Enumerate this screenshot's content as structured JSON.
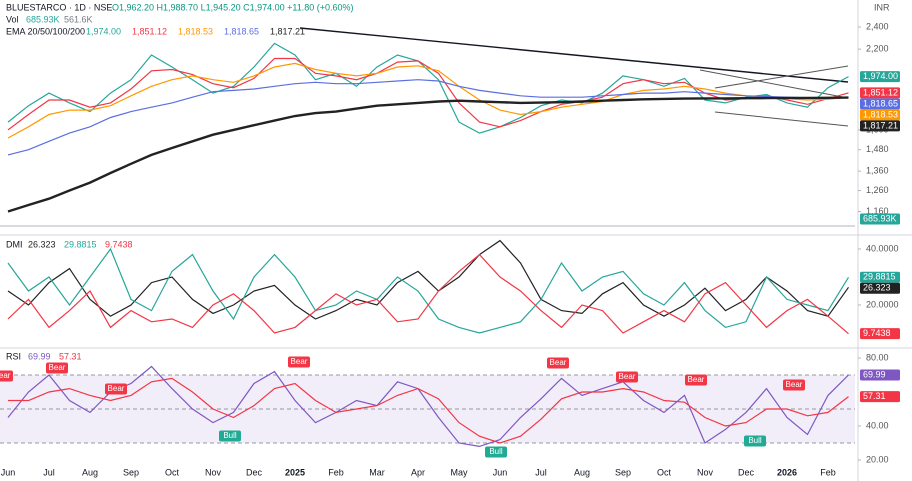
{
  "chart_data": [
    {
      "type": "line",
      "title": "BLUESTARCO · 1D · NSE",
      "ohlc_label": "O1,962.20 H1,988.70 L1,945.20 C1,974.00 +11.80 (+0.60%)",
      "volume_label": "Vol",
      "volume_value_label": "685.93K",
      "volume_ma_label": "561.6K",
      "ema_label": "EMA 20/50/100/200",
      "currency": "INR",
      "log_scale": true,
      "ylim": [
        1070,
        2670
      ],
      "yticks": [
        {
          "value": 2400,
          "label": "2,400"
        },
        {
          "value": 2200,
          "label": "2,200"
        },
        {
          "value": 1600,
          "label": "1,600"
        },
        {
          "value": 1480,
          "label": "1,480"
        },
        {
          "value": 1360,
          "label": "1,360"
        },
        {
          "value": 1260,
          "label": "1,260"
        },
        {
          "value": 1160,
          "label": "1,160"
        }
      ],
      "series": [
        {
          "color": "#26a69a",
          "value_label": "1,974.00",
          "values": [
            1650,
            1760,
            1850,
            1780,
            1720,
            1850,
            1950,
            2150,
            2050,
            1950,
            1850,
            1900,
            2050,
            2250,
            2150,
            1950,
            2000,
            1900,
            2050,
            2150,
            2100,
            1950,
            1650,
            1580,
            1620,
            1680,
            1760,
            1800,
            1780,
            1850,
            1980,
            1950,
            1900,
            1960,
            1800,
            1780,
            1820,
            1840,
            1780,
            1750,
            1890,
            1974
          ]
        },
        {
          "color": "#f23645",
          "value_label": "1,851.12",
          "values": [
            1600,
            1700,
            1800,
            1800,
            1750,
            1780,
            1880,
            2020,
            2030,
            1990,
            1920,
            1890,
            1960,
            2120,
            2120,
            2000,
            1980,
            1950,
            2000,
            2090,
            2100,
            2000,
            1780,
            1650,
            1620,
            1660,
            1720,
            1770,
            1790,
            1820,
            1920,
            1950,
            1920,
            1930,
            1850,
            1800,
            1810,
            1830,
            1800,
            1770,
            1810,
            1851.12
          ]
        },
        {
          "color": "#ff9800",
          "value_label": "1,818.53",
          "values": [
            1550,
            1620,
            1700,
            1730,
            1730,
            1760,
            1830,
            1900,
            1950,
            1980,
            1950,
            1930,
            1980,
            2050,
            2080,
            2030,
            2000,
            1980,
            2000,
            2050,
            2060,
            2020,
            1900,
            1800,
            1730,
            1700,
            1720,
            1750,
            1770,
            1790,
            1840,
            1870,
            1880,
            1900,
            1880,
            1850,
            1830,
            1820,
            1810,
            1800,
            1805,
            1818.53
          ]
        },
        {
          "color": "#5b6ee1",
          "value_label": "1,818.65",
          "values": [
            1450,
            1480,
            1530,
            1580,
            1620,
            1680,
            1720,
            1750,
            1780,
            1820,
            1860,
            1870,
            1880,
            1900,
            1920,
            1930,
            1920,
            1920,
            1930,
            1940,
            1950,
            1940,
            1900,
            1870,
            1850,
            1830,
            1820,
            1820,
            1820,
            1830,
            1840,
            1850,
            1850,
            1860,
            1850,
            1840,
            1830,
            1825,
            1820,
            1815,
            1815,
            1818.65
          ]
        },
        {
          "color": "#222222",
          "value_label": "1,817.21",
          "values": [
            1160,
            1190,
            1220,
            1260,
            1300,
            1350,
            1400,
            1450,
            1490,
            1530,
            1570,
            1600,
            1630,
            1660,
            1690,
            1710,
            1720,
            1740,
            1760,
            1770,
            1780,
            1790,
            1795,
            1790,
            1785,
            1780,
            1782,
            1785,
            1790,
            1795,
            1800,
            1805,
            1808,
            1810,
            1812,
            1812,
            1813,
            1814,
            1815,
            1815,
            1816,
            1817.21
          ]
        }
      ]
    },
    {
      "type": "line",
      "title": "DMI",
      "ylim": [
        5.7,
        43.2
      ],
      "yticks": [
        {
          "value": 40,
          "label": "40.0000"
        },
        {
          "value": 20,
          "label": "20.0000"
        }
      ],
      "series": [
        {
          "color": "#222222",
          "values": [
            25,
            20,
            28,
            33,
            22,
            16,
            20,
            28,
            30,
            22,
            17,
            20,
            25,
            27,
            20,
            15,
            18,
            22,
            20,
            28,
            32,
            25,
            30,
            38,
            43,
            35,
            22,
            18,
            17,
            24,
            28,
            20,
            16,
            20,
            26,
            18,
            22,
            30,
            25,
            18,
            16,
            26.323
          ]
        },
        {
          "color": "#26a69a",
          "values": [
            35,
            25,
            30,
            20,
            30,
            40,
            22,
            18,
            32,
            38,
            25,
            15,
            30,
            38,
            30,
            18,
            20,
            25,
            22,
            30,
            25,
            15,
            12,
            10,
            12,
            14,
            22,
            35,
            25,
            30,
            32,
            24,
            20,
            28,
            18,
            12,
            14,
            30,
            22,
            20,
            18,
            29.8815
          ]
        },
        {
          "color": "#f23645",
          "values": [
            15,
            22,
            12,
            18,
            25,
            12,
            18,
            14,
            15,
            12,
            20,
            24,
            18,
            10,
            12,
            18,
            24,
            20,
            22,
            14,
            15,
            25,
            32,
            38,
            30,
            25,
            18,
            12,
            20,
            18,
            10,
            14,
            18,
            14,
            24,
            28,
            20,
            12,
            18,
            22,
            16,
            9.7438
          ]
        }
      ]
    },
    {
      "type": "line",
      "title": "RSI",
      "ylim": [
        16.5,
        84.7
      ],
      "yticks": [
        {
          "value": 80,
          "label": "80.00"
        },
        {
          "value": 40,
          "label": "40.00"
        },
        {
          "value": 20,
          "label": "20.00"
        }
      ],
      "overbought": 70,
      "midline": 50,
      "oversold": 30,
      "categories": [
        "Jun",
        null,
        "Jul",
        null,
        "Aug",
        null,
        "Sep",
        null,
        "Oct",
        null,
        "Nov",
        null,
        "Dec",
        null,
        "2025",
        null,
        "Feb",
        null,
        "Mar",
        null,
        "Apr",
        null,
        "May",
        null,
        "Jun",
        null,
        "Jul",
        null,
        "Aug",
        null,
        "Sep",
        null,
        "Oct",
        null,
        "Nov",
        null,
        "Dec",
        null,
        "2026",
        null,
        "Feb",
        null
      ],
      "series": [
        {
          "color": "#7e57c2",
          "values": [
            45,
            60,
            70,
            55,
            48,
            60,
            65,
            75,
            62,
            50,
            42,
            48,
            65,
            72,
            55,
            42,
            48,
            55,
            52,
            66,
            62,
            45,
            30,
            28,
            32,
            45,
            56,
            68,
            58,
            62,
            66,
            55,
            48,
            58,
            30,
            38,
            48,
            62,
            45,
            35,
            58,
            69.99
          ]
        },
        {
          "color": "#f23645",
          "values": [
            55,
            55,
            60,
            62,
            58,
            55,
            58,
            66,
            68,
            60,
            50,
            45,
            52,
            62,
            65,
            55,
            48,
            50,
            52,
            58,
            62,
            56,
            42,
            34,
            30,
            34,
            44,
            56,
            60,
            60,
            62,
            60,
            55,
            54,
            45,
            40,
            42,
            50,
            50,
            46,
            48,
            57.31
          ]
        }
      ],
      "signals": [
        {
          "text": "Bear",
          "color": "#f23645"
        },
        {
          "text": "Bear",
          "color": "#f23645"
        },
        {
          "text": "Bear",
          "color": "#f23645"
        },
        {
          "text": "Bull",
          "color": "#22ab94"
        },
        {
          "text": "Bear",
          "color": "#f23645"
        },
        {
          "text": "Bull",
          "color": "#22ab94"
        },
        {
          "text": "Bear",
          "color": "#f23645"
        },
        {
          "text": "Bear",
          "color": "#f23645"
        },
        {
          "text": "Bear",
          "color": "#f23645"
        },
        {
          "text": "Bull",
          "color": "#22ab94"
        },
        {
          "text": "Bear",
          "color": "#f23645"
        }
      ]
    }
  ]
}
